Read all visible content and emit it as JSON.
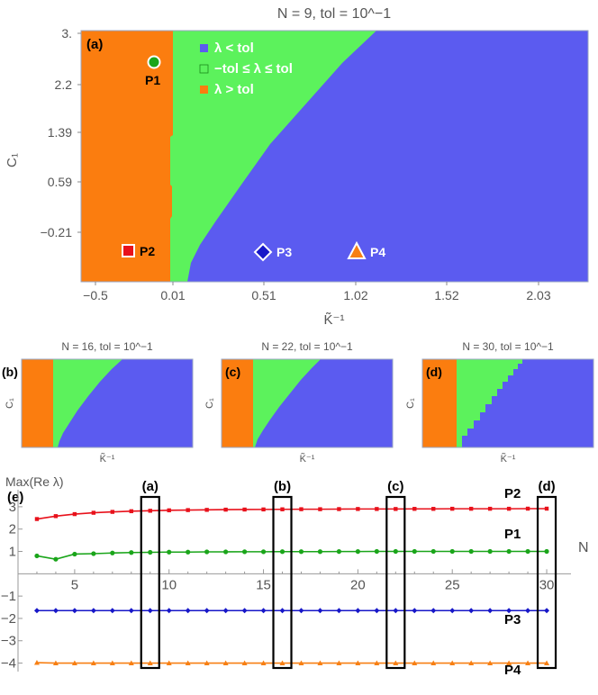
{
  "colors": {
    "blue": "#5b5bf0",
    "green": "#5cf25c",
    "orange": "#fb7d0f",
    "red": "#e8111b",
    "p1": "#1aa51a",
    "p3": "#1717c8",
    "p4": "#f77f13",
    "frame": "#9aa6c3"
  },
  "chart_data": [
    {
      "type": "heatmap",
      "title": "N = 9,  tol = 10^−1",
      "panel": "(a)",
      "xlabel": "K̃⁻¹",
      "ylabel": "C₁",
      "xticks": [
        "−0.5",
        "0.01",
        "0.51",
        "1.02",
        "1.52",
        "2.03"
      ],
      "yticks": [
        "3.",
        "2.2",
        "1.39",
        "0.59",
        "−0.21"
      ],
      "xlim": [
        -0.5,
        2.5
      ],
      "ylim": [
        -1,
        3
      ],
      "legend": [
        {
          "label": "λ < tol",
          "color": "blue"
        },
        {
          "label": "−tol ≤ λ ≤ tol",
          "color": "green"
        },
        {
          "label": "λ > tol",
          "color": "orange"
        }
      ],
      "points": [
        {
          "label": "P1",
          "x": -0.1,
          "y": 2.6,
          "marker": "circle",
          "color": "p1"
        },
        {
          "label": "P2",
          "x": -0.25,
          "y": -0.6,
          "marker": "square",
          "color": "red"
        },
        {
          "label": "P3",
          "x": 0.49,
          "y": -0.6,
          "marker": "diamond",
          "color": "p3"
        },
        {
          "label": "P4",
          "x": 1.01,
          "y": -0.6,
          "marker": "triangle",
          "color": "p4"
        }
      ]
    },
    {
      "type": "heatmap",
      "title": "N = 16,  tol = 10^−1",
      "panel": "(b)",
      "xlabel": "K̃⁻¹",
      "ylabel": "C₁"
    },
    {
      "type": "heatmap",
      "title": "N = 22,  tol = 10^−1",
      "panel": "(c)",
      "xlabel": "K̃⁻¹",
      "ylabel": "C₁"
    },
    {
      "type": "heatmap",
      "title": "N = 30,  tol = 10^−1",
      "panel": "(d)",
      "xlabel": "K̃⁻¹",
      "ylabel": "C₁"
    },
    {
      "type": "line",
      "panel": "(e)",
      "ylabel": "Max(Re λ)",
      "xlabel": "N",
      "xticks": [
        5,
        10,
        15,
        20,
        25,
        30
      ],
      "yticks": [
        3,
        2,
        1,
        -1,
        -2,
        -3,
        -4
      ],
      "xlim": [
        2,
        31
      ],
      "ylim": [
        -4.3,
        3.6
      ],
      "highlight": [
        {
          "label": "(a)",
          "x": 9
        },
        {
          "label": "(b)",
          "x": 16
        },
        {
          "label": "(c)",
          "x": 22
        },
        {
          "label": "(d)",
          "x": 30
        }
      ],
      "x": [
        3,
        4,
        5,
        6,
        7,
        8,
        9,
        10,
        11,
        12,
        13,
        14,
        15,
        16,
        17,
        18,
        19,
        20,
        21,
        22,
        23,
        24,
        25,
        26,
        27,
        28,
        29,
        30
      ],
      "series": [
        {
          "name": "P2",
          "color": "red",
          "marker": "square",
          "values": [
            2.45,
            2.58,
            2.67,
            2.73,
            2.77,
            2.8,
            2.82,
            2.84,
            2.85,
            2.86,
            2.87,
            2.875,
            2.88,
            2.885,
            2.89,
            2.89,
            2.895,
            2.9,
            2.9,
            2.9,
            2.905,
            2.905,
            2.91,
            2.91,
            2.91,
            2.91,
            2.915,
            2.915
          ]
        },
        {
          "name": "P1",
          "color": "p1",
          "marker": "circle",
          "values": [
            0.8,
            0.65,
            0.88,
            0.9,
            0.93,
            0.95,
            0.96,
            0.97,
            0.97,
            0.98,
            0.98,
            0.985,
            0.985,
            0.99,
            0.99,
            0.99,
            0.995,
            0.995,
            1,
            1,
            1,
            1,
            1,
            1,
            1,
            1,
            1,
            1
          ]
        },
        {
          "name": "P3",
          "color": "p3",
          "marker": "diamond",
          "values": [
            -1.65,
            -1.65,
            -1.65,
            -1.65,
            -1.65,
            -1.65,
            -1.65,
            -1.65,
            -1.65,
            -1.65,
            -1.65,
            -1.65,
            -1.65,
            -1.65,
            -1.65,
            -1.65,
            -1.65,
            -1.65,
            -1.65,
            -1.65,
            -1.65,
            -1.65,
            -1.65,
            -1.65,
            -1.65,
            -1.65,
            -1.65,
            -1.65
          ]
        },
        {
          "name": "P4",
          "color": "p4",
          "marker": "triangle",
          "values": [
            -3.98,
            -4.0,
            -4.0,
            -4.0,
            -4.0,
            -4.0,
            -4.0,
            -4.0,
            -4.0,
            -4.0,
            -4.0,
            -4.0,
            -4.0,
            -4.0,
            -4.0,
            -4.0,
            -4.0,
            -4.0,
            -4.0,
            -4.0,
            -4.0,
            -4.0,
            -4.0,
            -4.0,
            -4.0,
            -4.0,
            -4.0,
            -4.0
          ]
        }
      ]
    }
  ]
}
